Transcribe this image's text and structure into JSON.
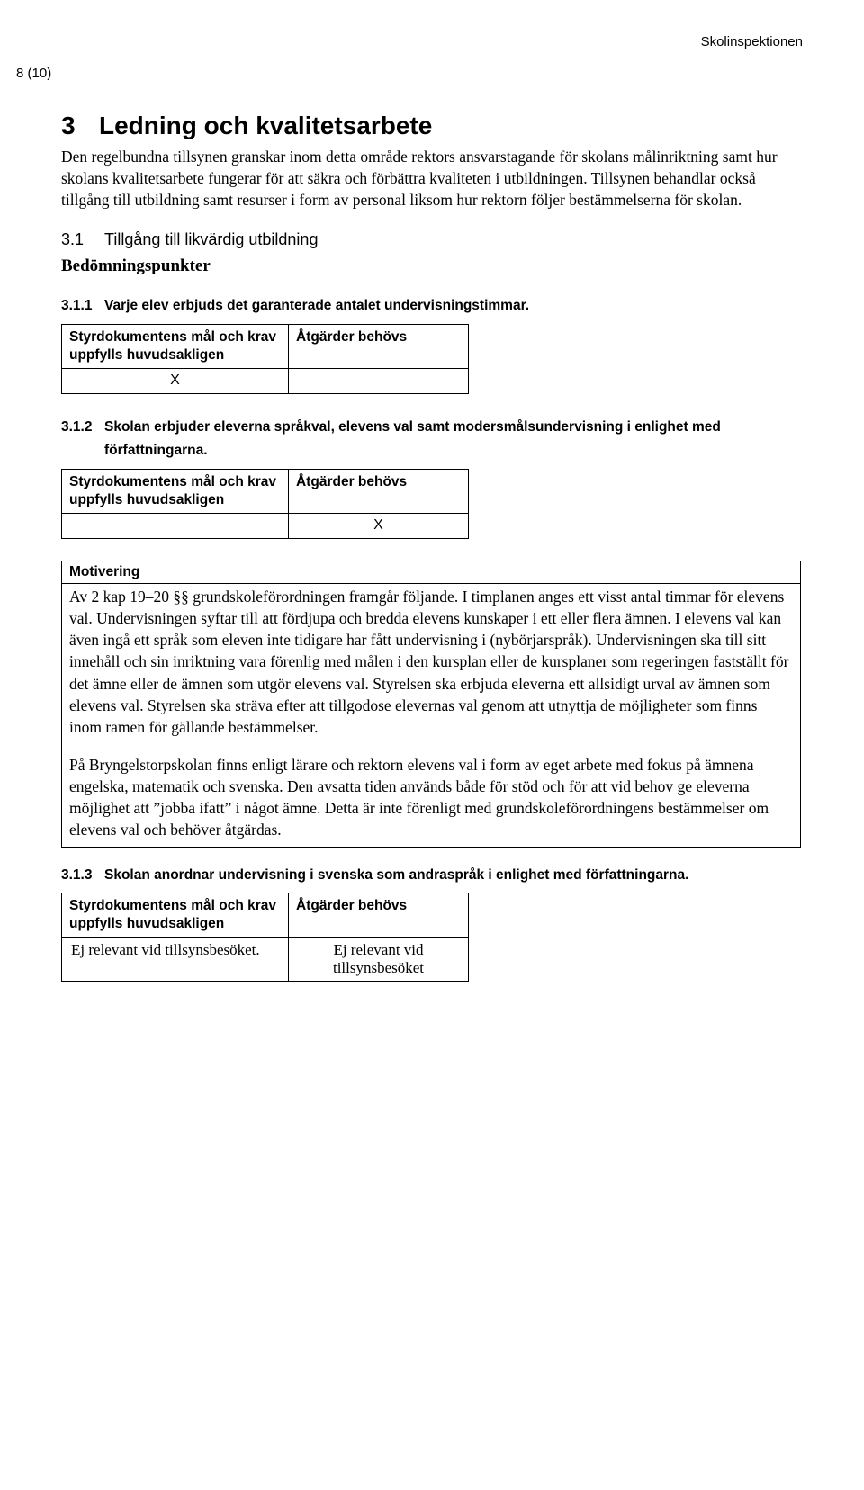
{
  "header": {
    "org": "Skolinspektionen",
    "page_num": "8 (10)"
  },
  "section": {
    "num": "3",
    "title": "Ledning och kvalitetsarbete",
    "intro": "Den regelbundna tillsynen granskar inom detta område rektors ansvarstagande för skolans målinriktning samt hur skolans kvalitetsarbete fungerar för att säkra och förbättra kvaliteten i utbildningen. Tillsynen behandlar också tillgång till utbildning samt resurser i form av personal liksom hur rektorn följer bestämmelserna för skolan."
  },
  "subsection": {
    "num": "3.1",
    "title": "Tillgång till likvärdig utbildning",
    "bedom": "Bedömningspunkter"
  },
  "table_headers": {
    "col1": "Styrdokumentens mål och krav uppfylls huvudsakligen",
    "col2": "Åtgärder behövs"
  },
  "motive_header": "Motivering",
  "items": [
    {
      "num": "3.1.1",
      "text": "Varje elev erbjuds det garanterade antalet undervisningstimmar.",
      "col1_mark": "X",
      "col2_mark": ""
    },
    {
      "num": "3.1.2",
      "text": "Skolan erbjuder eleverna språkval, elevens val samt modersmålsundervisning i enlighet med författningarna.",
      "col1_mark": "",
      "col2_mark": "X"
    },
    {
      "num": "3.1.3",
      "text": "Skolan anordnar undervisning i svenska som andraspråk i enlighet med författningarna.",
      "col1_mark": "Ej relevant vid tillsynsbesöket.",
      "col2_mark": "Ej relevant vid tillsynsbesöket"
    }
  ],
  "motivation": {
    "p1": "Av 2 kap 19–20 §§ grundskoleförordningen framgår följande. I timplanen anges ett visst antal timmar för elevens val. Undervisningen syftar till att fördjupa och bredda elevens kunskaper i ett eller flera ämnen. I elevens val kan även ingå ett språk som eleven inte tidigare har fått undervisning i (nybörjarspråk). Undervisningen ska till sitt innehåll och sin inriktning vara förenlig med målen i den kursplan eller de kursplaner som regeringen fastställt för det ämne eller de ämnen som utgör elevens val. Styrelsen ska erbjuda eleverna ett allsidigt urval av ämnen som elevens val. Styrelsen ska sträva efter att tillgodose elevernas val genom att utnyttja de möjligheter som finns inom ramen för gällande bestämmelser.",
    "p2": "På Bryngelstorpskolan finns enligt lärare och rektorn elevens val i form av eget arbete med fokus på ämnena engelska, matematik och svenska. Den avsatta tiden används både för stöd och för att vid behov ge eleverna möjlighet att ”jobba ifatt” i något ämne. Detta är inte förenligt med grundskoleförordningens bestämmelser om elevens val och behöver åtgärdas."
  }
}
